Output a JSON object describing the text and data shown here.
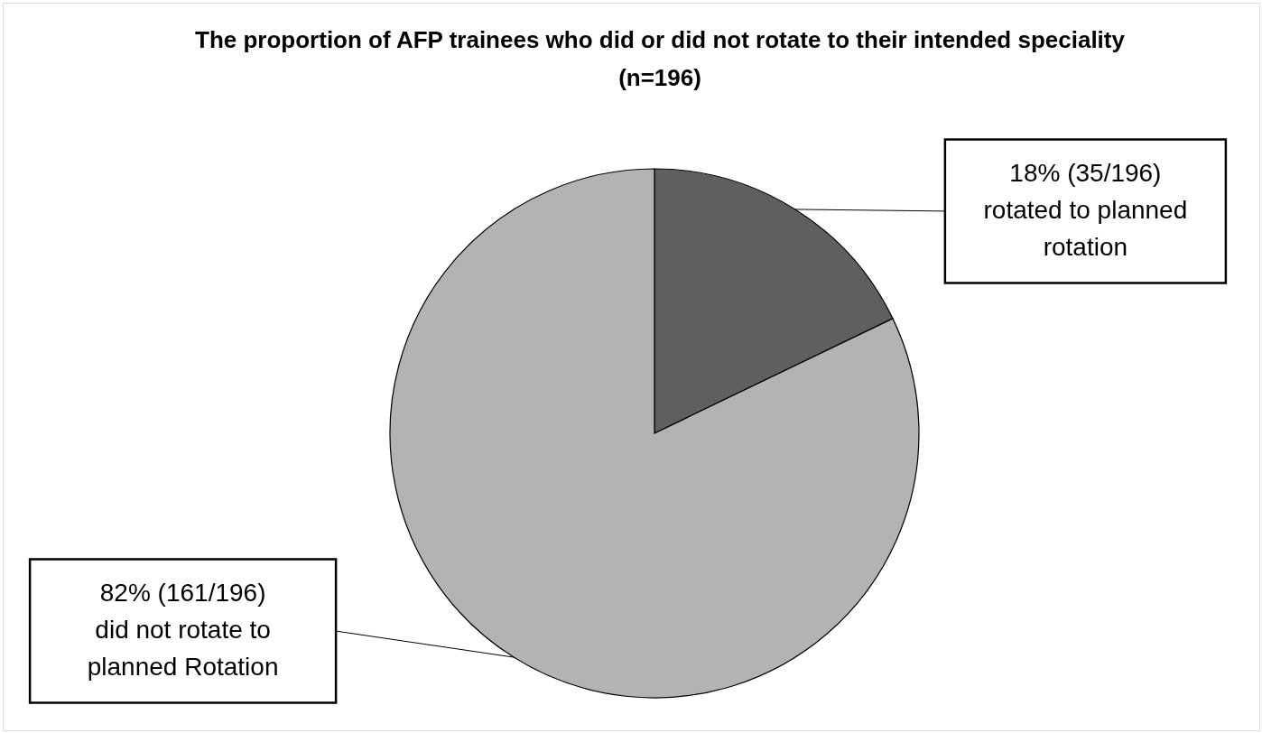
{
  "chart_data": {
    "type": "pie",
    "title": "The proportion of AFP trainees who did or did not rotate to their intended speciality (n=196)",
    "categories": [
      "rotated to planned rotation",
      "did not rotate to planned Rotation"
    ],
    "values": [
      35,
      161
    ],
    "colors": [
      "#5f5f5f",
      "#b3b3b3"
    ],
    "value_labels": [
      "18% (35/196)",
      "82% (161/196)"
    ]
  }
}
